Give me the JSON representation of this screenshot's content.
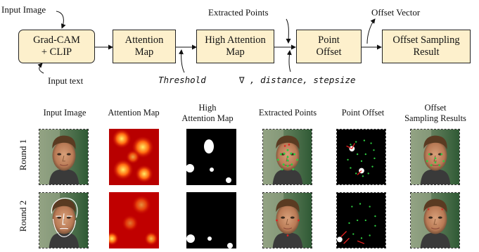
{
  "pipeline": {
    "input_image_label": "Input Image",
    "input_text_label": "Input text",
    "extracted_points_label": "Extracted Points",
    "offset_vector_label": "Offset Vector",
    "threshold_label": "Threshold",
    "params_label": "∇ , distance, stepsize",
    "boxes": [
      {
        "line1": "Grad-CAM",
        "line2": "+ CLIP"
      },
      {
        "line1": "Attention",
        "line2": "Map"
      },
      {
        "line1": "High Attention",
        "line2": "Map"
      },
      {
        "line1": "Point",
        "line2": "Offset"
      },
      {
        "line1": "Offset Sampling",
        "line2": "Result"
      }
    ]
  },
  "grid": {
    "columns": [
      {
        "line1": "Input Image",
        "line2": ""
      },
      {
        "line1": "Attention Map",
        "line2": ""
      },
      {
        "line1": "High",
        "line2": "Attention Map"
      },
      {
        "line1": "Extracted Points",
        "line2": ""
      },
      {
        "line1": "Point Offset",
        "line2": ""
      },
      {
        "line1": "Offset",
        "line2": "Sampling Results"
      }
    ],
    "rows": [
      "Round 1",
      "Round 2"
    ]
  }
}
